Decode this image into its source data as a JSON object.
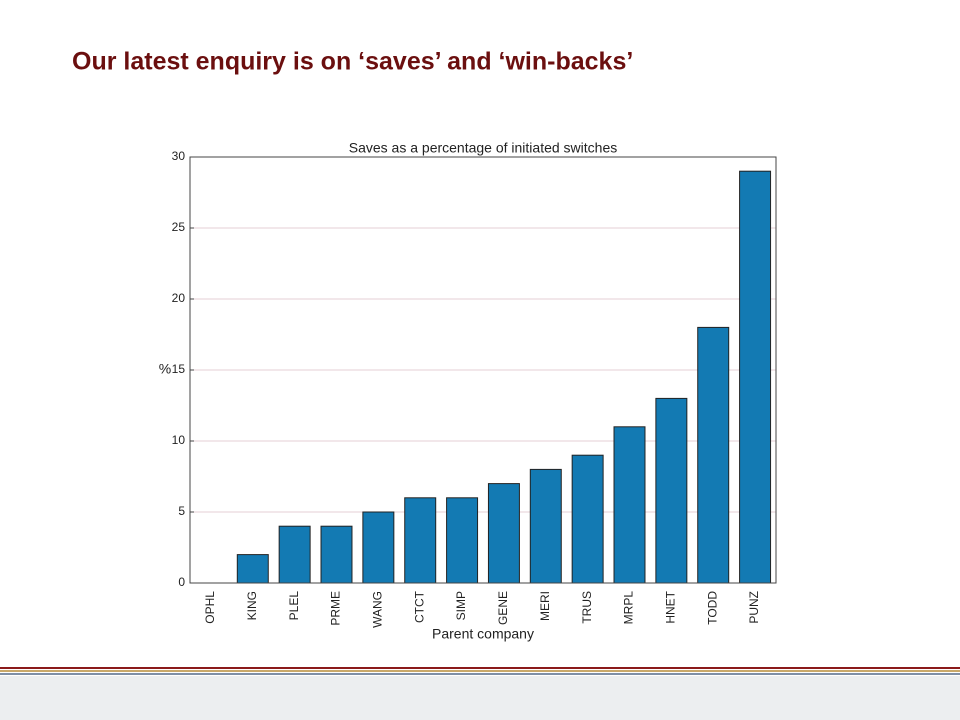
{
  "header": {
    "title": "Our latest enquiry is on ‘saves’ and ‘win-backs’"
  },
  "chart_data": {
    "type": "bar",
    "title": "Saves as a percentage of initiated switches",
    "x_label": "Parent company",
    "y_label": "%",
    "categories": [
      "OPHL",
      "KING",
      "PLEL",
      "PRME",
      "WANG",
      "CTCT",
      "SIMP",
      "GENE",
      "MERI",
      "TRUS",
      "MRPL",
      "HNET",
      "TODD",
      "PUNZ"
    ],
    "values": [
      0,
      2,
      4,
      4,
      5,
      6,
      6,
      7,
      8,
      9,
      11,
      13,
      18,
      29
    ],
    "color": "#137ab3",
    "ylim": [
      0,
      30
    ],
    "yticks": [
      0,
      5,
      10,
      15,
      20,
      25,
      30
    ],
    "grid": true
  }
}
